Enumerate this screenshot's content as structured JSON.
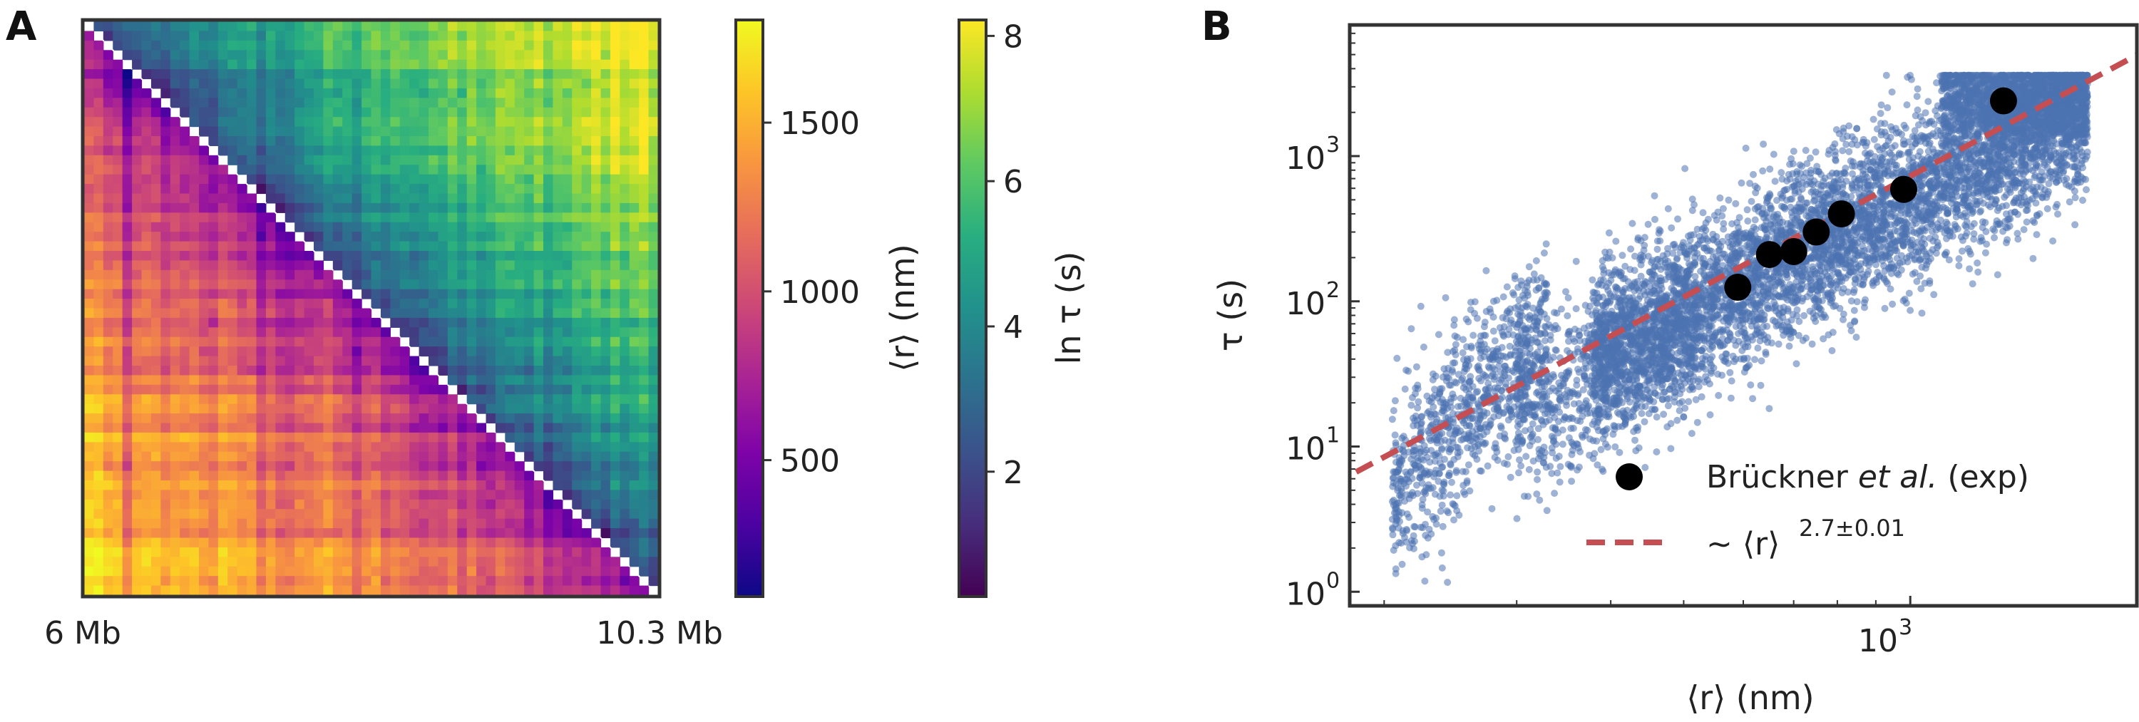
{
  "panels": [
    {
      "letter": "A",
      "matrix": {
        "x_start_label": "6 Mb",
        "x_end_label": "10.3 Mb",
        "n_bins": 60,
        "lower_triangle": "mean distance <r> (nm)",
        "upper_triangle": "ln tau (s)"
      },
      "colorbar_r": {
        "label": "⟨r⟩ (nm)",
        "colormap": "plasma",
        "range": [
          100,
          1800
        ],
        "ticks": [
          "500",
          "1000",
          "1500"
        ],
        "tick_values": [
          500,
          1000,
          1500
        ]
      },
      "colorbar_tau": {
        "label": "ln τ (s)",
        "colormap": "viridis",
        "range": [
          0.3,
          8.2
        ],
        "ticks": [
          "2",
          "4",
          "6",
          "8"
        ],
        "tick_values": [
          2,
          4,
          6,
          8
        ]
      }
    },
    {
      "letter": "B",
      "xlabel": "⟨r⟩ (nm)",
      "ylabel": "τ (s)",
      "x_tick_label": "10",
      "x_tick_exp": "3",
      "y_tick_labels": [
        {
          "base": "10",
          "exp": "0"
        },
        {
          "base": "10",
          "exp": "1"
        },
        {
          "base": "10",
          "exp": "2"
        },
        {
          "base": "10",
          "exp": "3"
        }
      ],
      "legend": {
        "exp_prefix": "Brückner ",
        "exp_italic": "et al.",
        "exp_suffix": " (exp)",
        "fit_prefix": "∼ ",
        "fit_r": "⟨r⟩",
        "fit_exp": "2.7±0.01"
      }
    }
  ],
  "chart_data": [
    {
      "type": "heatmap",
      "title": "",
      "xlabel": "",
      "ylabel": "",
      "x_range_labels": [
        "6 Mb",
        "10.3 Mb"
      ],
      "lower_triangle": {
        "quantity": "⟨r⟩ (nm)",
        "colormap": "plasma",
        "range": [
          100,
          1800
        ]
      },
      "upper_triangle": {
        "quantity": "ln τ (s)",
        "colormap": "viridis",
        "range": [
          0.3,
          8.2
        ]
      }
    },
    {
      "type": "scatter",
      "title": "",
      "xlabel": "⟨r⟩ (nm)",
      "ylabel": "τ (s)",
      "x_scale": "log",
      "y_scale": "log",
      "xlim": [
        180,
        2000
      ],
      "ylim": [
        0.8,
        8000
      ],
      "grid": false,
      "legend_placement": "bottom-right",
      "series": [
        {
          "name": "",
          "kind": "simulation cloud (~10000 points)",
          "color": "#4c72b0",
          "shape_points": [
            [
              215,
              5
            ],
            [
              240,
              40
            ],
            [
              300,
              150
            ],
            [
              400,
              200
            ],
            [
              600,
              200
            ],
            [
              900,
              500
            ],
            [
              1300,
              3000
            ],
            [
              1700,
              3500
            ]
          ]
        },
        {
          "name": "Brückner et al. (exp)",
          "color": "#000000",
          "x": [
            590,
            650,
            700,
            750,
            810,
            980,
            1330
          ],
          "y": [
            125,
            210,
            220,
            300,
            400,
            590,
            2400
          ]
        },
        {
          "name": "∼ ⟨r⟩^(2.7±0.01)",
          "type": "line",
          "style": "dashed",
          "color": "#c44e52",
          "exponent": 2.7,
          "x": [
            170,
            2000
          ],
          "y": [
            5.4,
            4958
          ]
        }
      ]
    }
  ]
}
